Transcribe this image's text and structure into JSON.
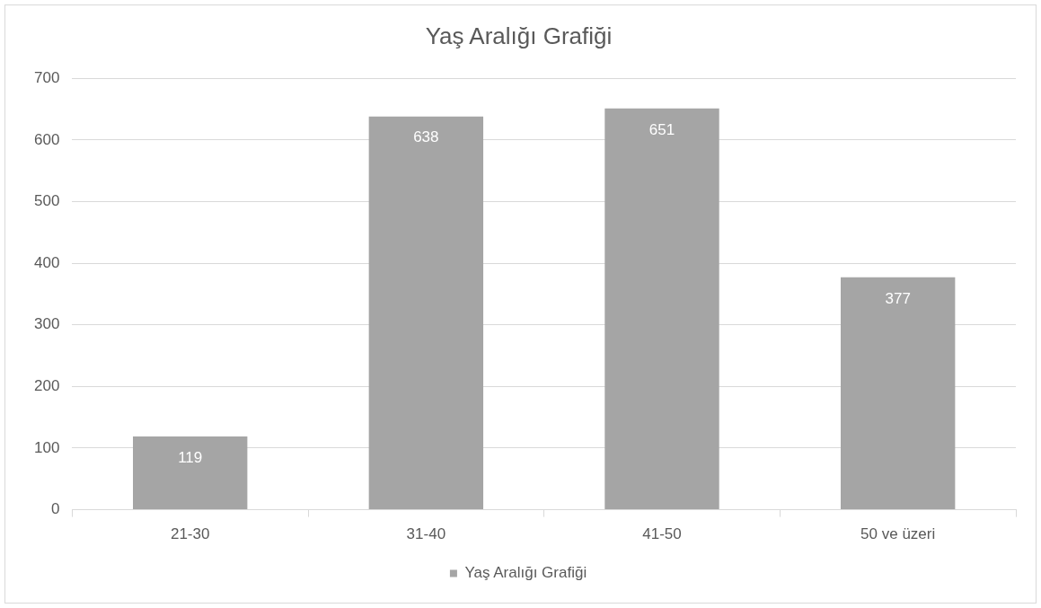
{
  "chart_data": {
    "type": "bar",
    "title": "Yaş Aralığı Grafiği",
    "categories": [
      "21-30",
      "31-40",
      "41-50",
      "50 ve üzeri"
    ],
    "series": [
      {
        "name": "Yaş Aralığı Grafiği",
        "color": "#a5a5a5",
        "values": [
          119,
          638,
          651,
          377
        ]
      }
    ],
    "ylim": [
      0,
      700
    ],
    "yticks": [
      0,
      100,
      200,
      300,
      400,
      500,
      600,
      700
    ],
    "grid": "y",
    "legend": "bottom",
    "data_labels": true
  }
}
